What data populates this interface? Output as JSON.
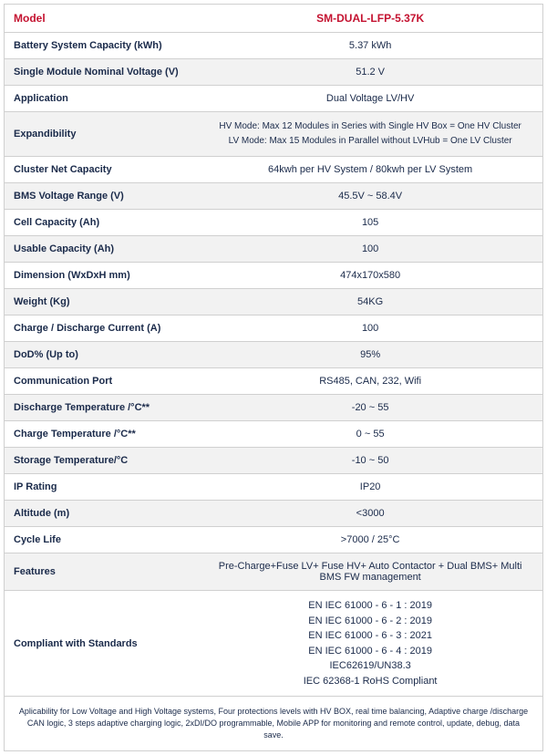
{
  "table": {
    "header": {
      "label": "Model",
      "value": "SM-DUAL-LFP-5.37K"
    },
    "rows": [
      {
        "label": "Battery System Capacity (kWh)",
        "value": "5.37 kWh"
      },
      {
        "label": "Single Module Nominal Voltage (V)",
        "value": "51.2 V"
      },
      {
        "label": "Application",
        "value": "Dual Voltage  LV/HV"
      },
      {
        "label": "Expandibility",
        "value": "HV Mode: Max 12 Modules in Series with Single HV Box = One HV Cluster\nLV Mode: Max 15 Modules in Parallel without LVHub = One LV Cluster",
        "multiline": true,
        "class": "expand-row"
      },
      {
        "label": "Cluster Net Capacity",
        "value": "64kwh per HV System / 80kwh per LV System"
      },
      {
        "label": "BMS Voltage Range (V)",
        "value": "45.5V ~ 58.4V"
      },
      {
        "label": "Cell Capacity (Ah)",
        "value": "105"
      },
      {
        "label": "Usable Capacity (Ah)",
        "value": "100"
      },
      {
        "label": "Dimension (WxDxH mm)",
        "value": "474x170x580"
      },
      {
        "label": "Weight (Kg)",
        "value": "54KG"
      },
      {
        "label": "Charge / Discharge Current (A)",
        "value": "100"
      },
      {
        "label": "DoD%  (Up to)",
        "value": "95%"
      },
      {
        "label": "Communication Port",
        "value": "RS485, CAN, 232, Wifi"
      },
      {
        "label": "Discharge Temperature /°C**",
        "value": "-20 ~ 55"
      },
      {
        "label": "Charge Temperature /°C**",
        "value": "0 ~ 55"
      },
      {
        "label": "Storage Temperature/°C",
        "value": "-10 ~ 50"
      },
      {
        "label": "IP Rating",
        "value": "IP20"
      },
      {
        "label": "Altitude (m)",
        "value": "<3000"
      },
      {
        "label": "Cycle Life",
        "value": ">7000 / 25°C"
      },
      {
        "label": "Features",
        "value": "Pre-Charge+Fuse LV+ Fuse HV+ Auto Contactor + Dual BMS+ Multi BMS FW management",
        "small": true
      },
      {
        "label": "Compliant with Standards",
        "value": "EN IEC 61000 - 6 - 1 : 2019\nEN IEC 61000 - 6 - 2 : 2019\nEN IEC 61000 - 6 - 3 : 2021\nEN IEC 61000 - 6 - 4 : 2019\nIEC62619/UN38.3\nIEC 62368-1 RoHS Compliant",
        "multiline": true,
        "small": true
      }
    ],
    "footnote": "Aplicability for Low Voltage and High Voltage systems, Four  protections levels with HV BOX, real time balancing, Adaptive charge /discharge  CAN logic, 3 steps adaptive charging logic, 2xDI/DO programmable, Mobile APP for monitoring and remote control, update, debug, data save."
  },
  "colors": {
    "accent": "#c41230",
    "text": "#1a2a4a",
    "border": "#d0d0d0",
    "row_bg": "#f2f2f2",
    "background": "#ffffff"
  }
}
